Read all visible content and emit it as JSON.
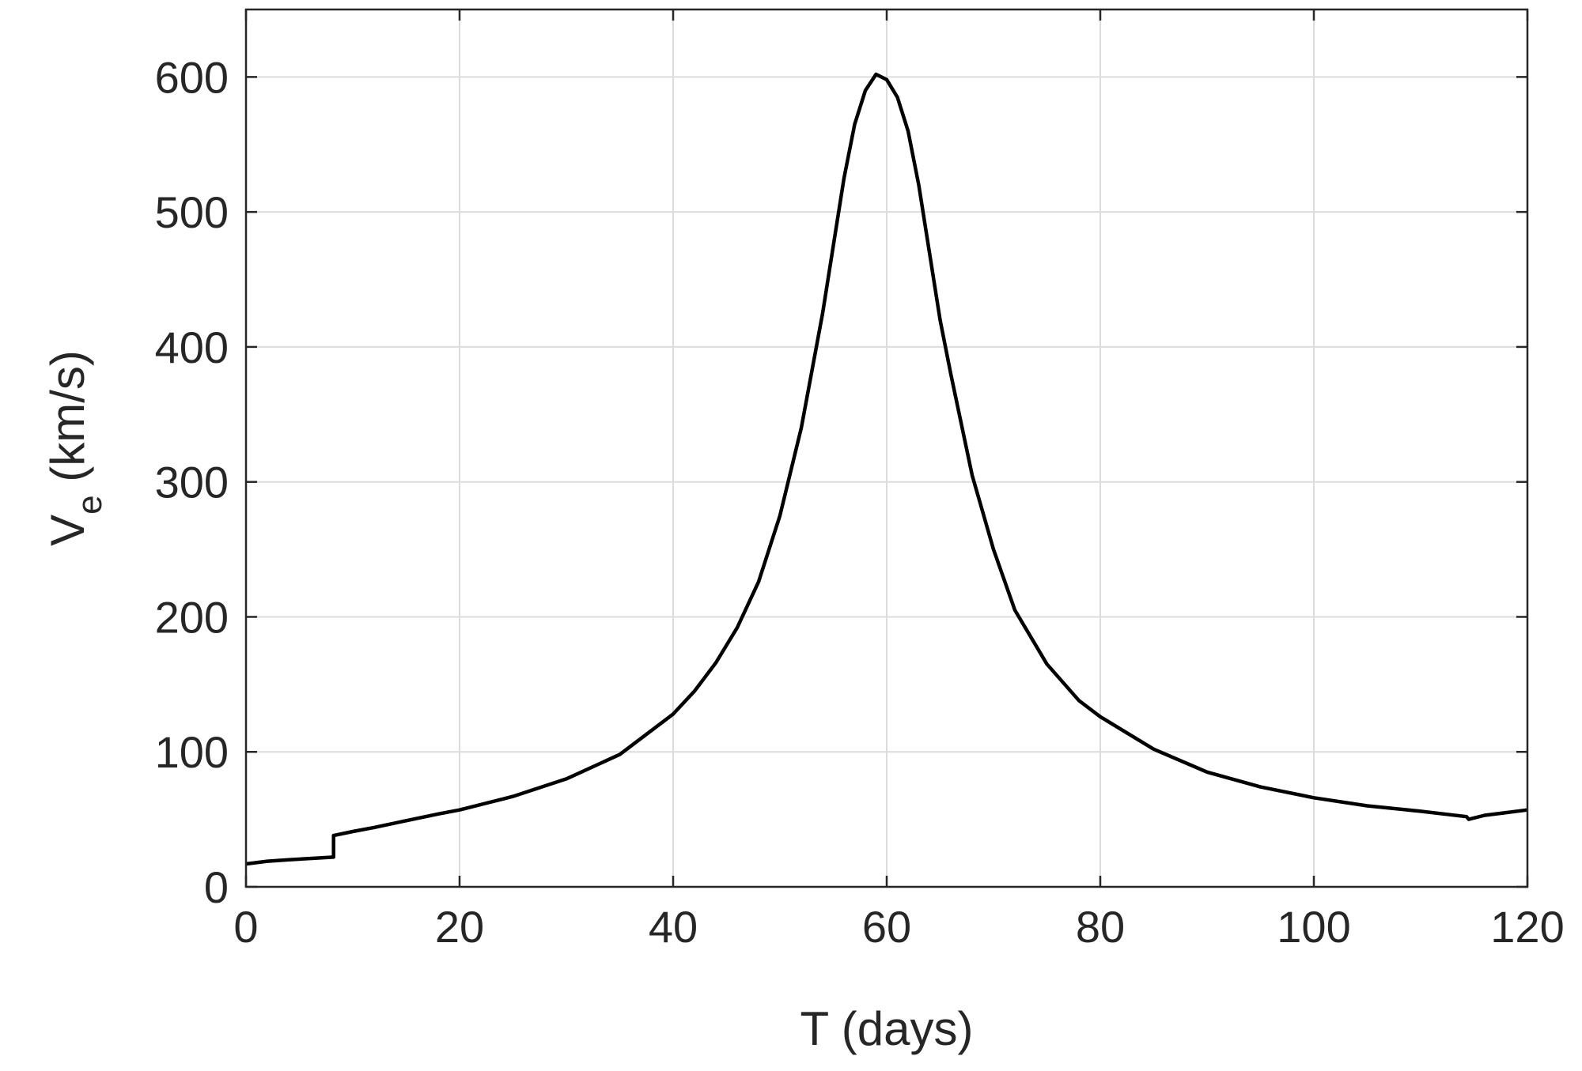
{
  "chart_data": {
    "type": "line",
    "title": "",
    "xlabel": "T (days)",
    "ylabel_main": "V",
    "ylabel_sub": "e",
    "ylabel_unit": " (km/s)",
    "xlim": [
      0,
      120
    ],
    "ylim": [
      0,
      650
    ],
    "xticks": [
      0,
      20,
      40,
      60,
      80,
      100,
      120
    ],
    "yticks": [
      0,
      100,
      200,
      300,
      400,
      500,
      600
    ],
    "xtick_labels": [
      "0",
      "20",
      "40",
      "60",
      "80",
      "100",
      "120"
    ],
    "ytick_labels": [
      "0",
      "100",
      "200",
      "300",
      "400",
      "500",
      "600"
    ],
    "grid": true,
    "series": [
      {
        "color": "#000000",
        "x": [
          0,
          2,
          4,
          6,
          8.2,
          8.2,
          10,
          12,
          15,
          18,
          20,
          25,
          30,
          35,
          40,
          42,
          44,
          46,
          48,
          50,
          52,
          54,
          55,
          56,
          57,
          58,
          59,
          60,
          61,
          62,
          63,
          64,
          65,
          66,
          68,
          70,
          72,
          75,
          78,
          80,
          85,
          90,
          95,
          100,
          105,
          110,
          114.3,
          114.5,
          116,
          118,
          120
        ],
        "y": [
          17,
          19,
          20,
          21,
          22,
          38,
          41,
          44,
          49,
          54,
          57,
          67,
          80,
          98,
          128,
          145,
          166,
          192,
          226,
          275,
          340,
          425,
          475,
          525,
          565,
          590,
          602,
          598,
          585,
          560,
          520,
          470,
          420,
          380,
          305,
          250,
          205,
          165,
          138,
          126,
          102,
          85,
          74,
          66,
          60,
          56,
          52,
          50,
          53,
          55,
          57
        ]
      }
    ]
  }
}
